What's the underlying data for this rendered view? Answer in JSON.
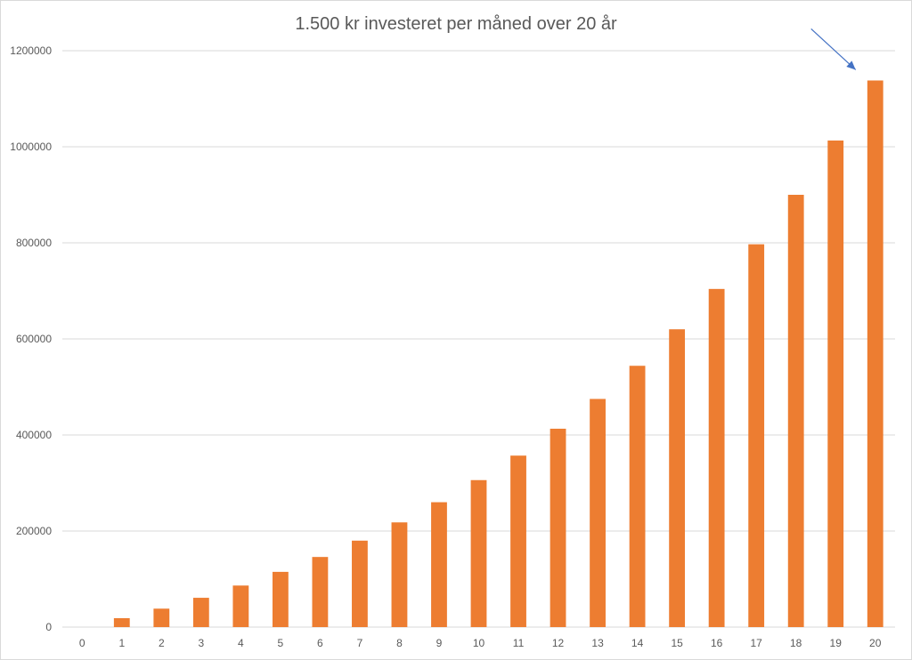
{
  "chart_data": {
    "type": "bar",
    "title": "1.500 kr investeret per måned over 20 år",
    "xlabel": "",
    "ylabel": "",
    "categories": [
      "0",
      "1",
      "2",
      "3",
      "4",
      "5",
      "6",
      "7",
      "8",
      "9",
      "10",
      "11",
      "12",
      "13",
      "14",
      "15",
      "16",
      "17",
      "18",
      "19",
      "20"
    ],
    "values": [
      0,
      18600,
      38400,
      61000,
      86500,
      115000,
      146000,
      180000,
      218000,
      260000,
      306000,
      357000,
      413000,
      475000,
      544000,
      620000,
      704000,
      797000,
      900000,
      1013000,
      1138000
    ],
    "ylim": [
      0,
      1200000
    ],
    "yticks": [
      "0",
      "200000",
      "400000",
      "600000",
      "800000",
      "1000000",
      "1200000"
    ],
    "grid": true,
    "legend": "none",
    "colors": {
      "bar": "#ED7D31",
      "grid": "#D9D9D9",
      "axis_text": "#595959",
      "arrow": "#4472C4"
    },
    "annotations": [
      {
        "type": "arrow",
        "target_category": "20"
      }
    ]
  }
}
